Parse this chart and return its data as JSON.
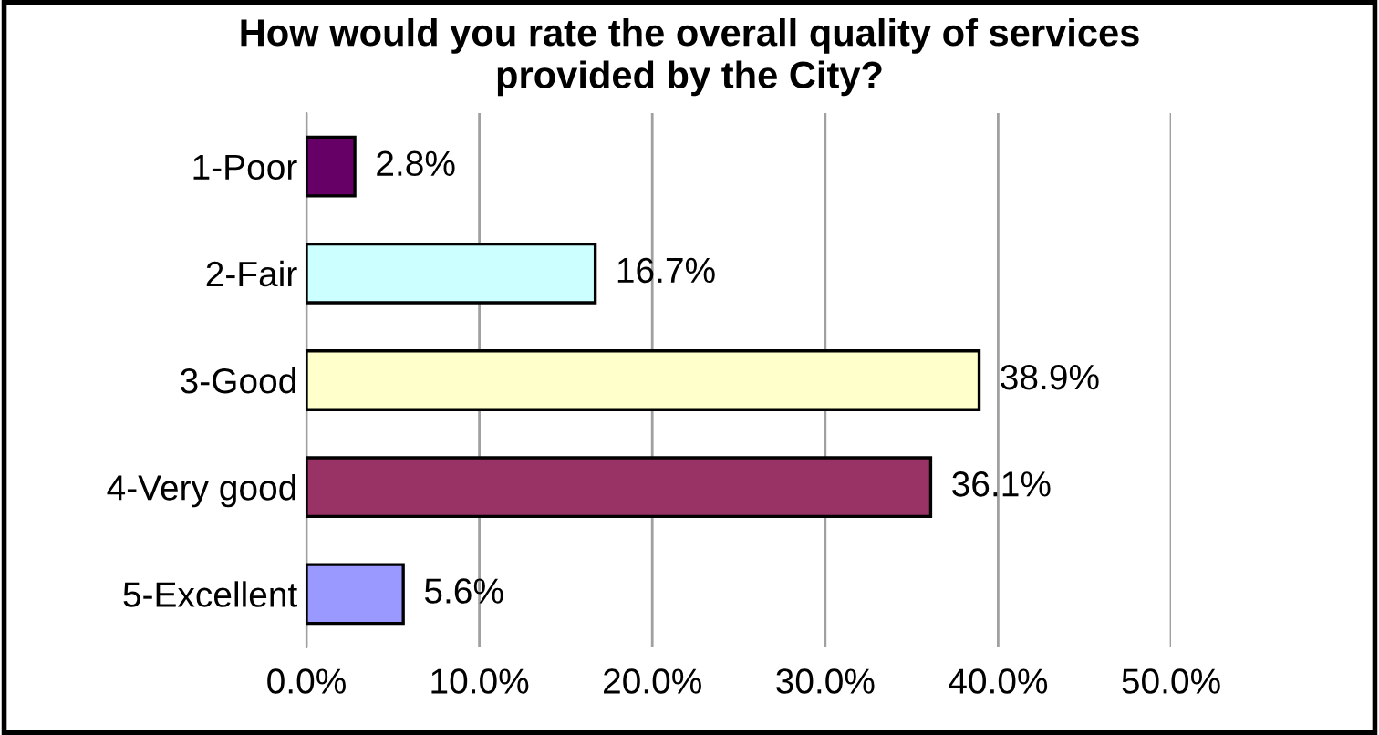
{
  "chart_data": {
    "type": "bar",
    "orientation": "horizontal",
    "title": "How would you rate the overall quality of services\nprovided by the City?",
    "categories": [
      "1-Poor",
      "2-Fair",
      "3-Good",
      "4-Very good",
      "5-Excellent"
    ],
    "values": [
      2.8,
      16.7,
      38.9,
      36.1,
      5.6
    ],
    "colors": [
      "#660066",
      "#ccffff",
      "#ffffcc",
      "#993366",
      "#9999ff"
    ],
    "value_labels": [
      "2.8%",
      "16.7%",
      "38.9%",
      "36.1%",
      "5.6%"
    ],
    "xlim": [
      0,
      50
    ],
    "xticks": [
      {
        "value": 0,
        "label": "0.0%"
      },
      {
        "value": 10,
        "label": "10.0%"
      },
      {
        "value": 20,
        "label": "20.0%"
      },
      {
        "value": 30,
        "label": "30.0%"
      },
      {
        "value": 40,
        "label": "40.0%"
      },
      {
        "value": 50,
        "label": "50.0%"
      }
    ],
    "grid": "x"
  }
}
